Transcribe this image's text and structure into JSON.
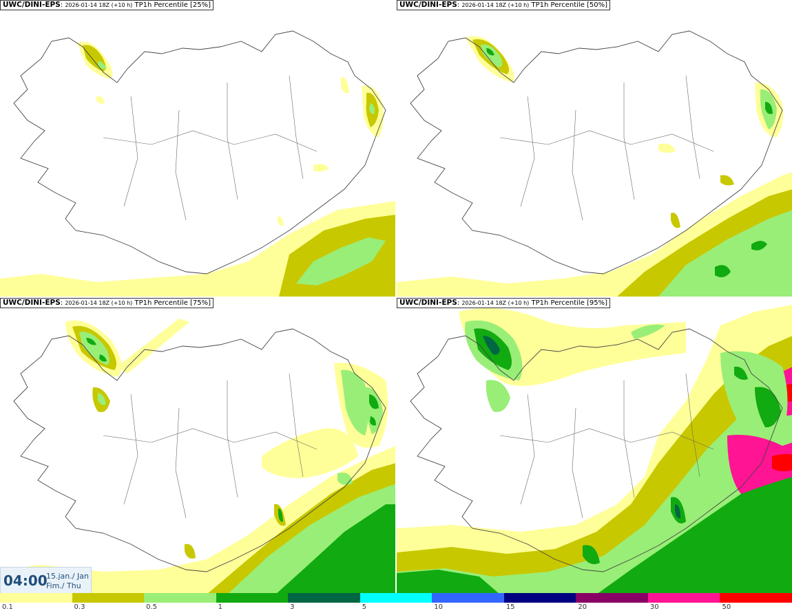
{
  "panels": [
    {
      "model": "UWC/DINI-EPS",
      "run": "2026-01-14 18Z (+10 h)",
      "field": "TP1h Percentile [25%]"
    },
    {
      "model": "UWC/DINI-EPS",
      "run": "2026-01-14 18Z (+10 h)",
      "field": "TP1h Percentile [50%]"
    },
    {
      "model": "UWC/DINI-EPS",
      "run": "2026-01-14 18Z (+10 h)",
      "field": "TP1h Percentile [75%]"
    },
    {
      "model": "UWC/DINI-EPS",
      "run": "2026-01-14 18Z (+10 h)",
      "field": "TP1h Percentile [95%]"
    }
  ],
  "time": {
    "clock": "04:00",
    "date_line": "15.jan./ Jan",
    "day_line": "Fim./ Thu"
  },
  "legend": {
    "colors": [
      "#ffff99",
      "#c8c800",
      "#99ee77",
      "#11aa11",
      "#006644",
      "#00ffff",
      "#3366ff",
      "#000080",
      "#880066",
      "#ff1493",
      "#ff0000"
    ],
    "labels": [
      "0.1",
      "0.3",
      "0.5",
      "1",
      "3",
      "5",
      "10",
      "15",
      "20",
      "30",
      "50"
    ]
  }
}
